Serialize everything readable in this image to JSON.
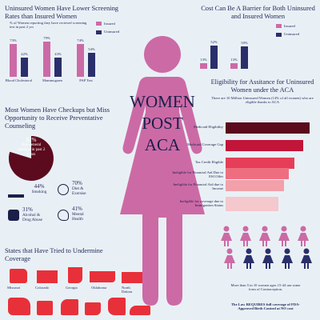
{
  "colors": {
    "pink": "#cc6aa6",
    "navy": "#2a2f6b",
    "maroon": "#5c0b1e",
    "red": "#e8303a",
    "bg": "#e9f0f5"
  },
  "center": {
    "line1": "WOMEN",
    "line2": "POST",
    "line3": "ACA"
  },
  "screening": {
    "title": "Uninsured Women Have Lower Screening Rates than Insured Women",
    "subtitle": "% of Women reporting they have recieved screening test in past 2 yrs",
    "legend_insured": "Insured",
    "legend_uninsured": "Uninsured"
  },
  "cost": {
    "title": "Cost Can Be A Barrier for Both Uninsured and Insured Women",
    "legend_insured": "Insured",
    "legend_uninsured": "Uninsured"
  },
  "chart_data": [
    {
      "type": "bar",
      "title": "Uninsured Women Have Lower Screening Rates than Insured Women",
      "categories": [
        "Blood Cholesterol",
        "Mammogram",
        "PAP Test"
      ],
      "series": [
        {
          "name": "Insured",
          "values": [
            73,
            79,
            74
          ]
        },
        {
          "name": "Uninsured",
          "values": [
            42,
            43,
            54
          ]
        }
      ],
      "labels": {
        "insured": [
          "73%",
          "79%",
          "74%"
        ],
        "uninsured": [
          "42%",
          "43%",
          "54%"
        ]
      },
      "ylim": [
        0,
        100
      ]
    },
    {
      "type": "bar",
      "title": "Cost Can Be A Barrier for Both Uninsured and Insured Women",
      "categories": [
        "",
        ""
      ],
      "series": [
        {
          "name": "Insured",
          "values": [
            13,
            13
          ]
        },
        {
          "name": "Uninsured",
          "values": [
            52,
            50
          ]
        }
      ],
      "labels": {
        "insured": [
          "13%",
          "13%"
        ],
        "uninsured": [
          "52%",
          "50%"
        ]
      },
      "ylim": [
        0,
        100
      ]
    }
  ],
  "checkups": {
    "title": "Most Women Have Checkups but Miss Opportunity to Receive Preventative Counseling",
    "pie_pct": "82%",
    "pie_text": "Had general checkup in past 2 years",
    "smoking_pct": "44%",
    "smoking_label": "Smoking",
    "diet_pct": "70%",
    "diet_label": "Diet & Exersise",
    "alcohol_pct": "31%",
    "alcohol_label": "Alcohol & Drug Abuse",
    "mental_pct": "41%",
    "mental_label": "Mental Health"
  },
  "eligibility": {
    "title": "Eligibility for Assitance for Uninsured Women under the ACA",
    "subtitle": "There are 10 Million Uninsured Women (14% of all women) who are eligible thanks to ACA",
    "rows": [
      "Medicaid Eligibility",
      "Medicaid Coverage Gap",
      "Tax Credit Eligible",
      "Ineligible for Financial Aid Due to ESI Offer",
      "Ineligible for Financial Aid due to Income",
      "Ineligible for coverage due to Immigration Status"
    ],
    "values": [
      0.95,
      0.88,
      0.78,
      0.72,
      0.66,
      0.6
    ],
    "bar_colors": [
      "#5a0b1c",
      "#c2153a",
      "#e63e58",
      "#ee6e80",
      "#f2a0aa",
      "#f4c8cc"
    ]
  },
  "contraception": {
    "text": "More than 5 in 10 women ages 15-44 use some form of Contraception.",
    "bold": "The Law REQUIRES full coverage of FDA-Approved Birth Control at NO cost"
  },
  "states": {
    "title": "States that Have Tried to Undermine Coverage",
    "names": [
      "Missouri",
      "Colorado",
      "Georgia",
      "Oklahoma",
      "North Dakota"
    ]
  }
}
